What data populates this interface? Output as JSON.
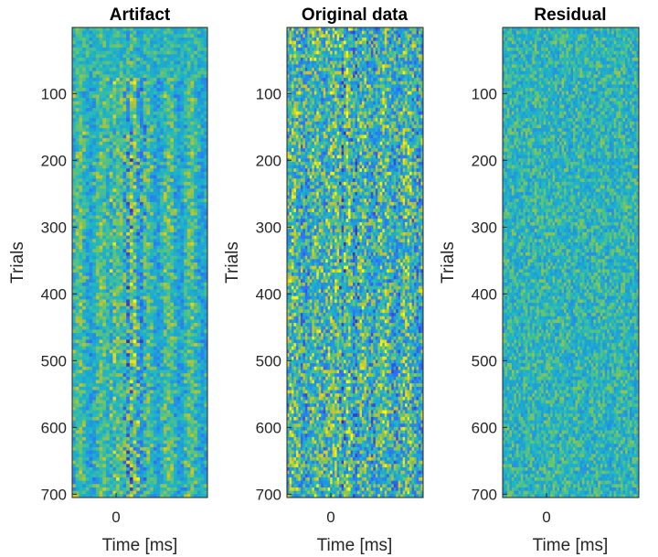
{
  "chart_data": [
    {
      "type": "heatmap",
      "title": "Artifact",
      "xlabel": "Time [ms]",
      "ylabel": "Trials",
      "x_ticks": [
        0
      ],
      "y_ticks": [
        100,
        200,
        300,
        400,
        500,
        600,
        700
      ],
      "ylim": [
        1,
        705
      ],
      "colormap": "parula",
      "y_direction": "reverse",
      "pattern": "strong vertical bands of alternating yellow/dark-blue stripes around 0 ms, consistent across trials; lower-contrast block near trials 1-75"
    },
    {
      "type": "heatmap",
      "title": "Original data",
      "xlabel": "Time [ms]",
      "ylabel": "Trials",
      "x_ticks": [
        0
      ],
      "y_ticks": [
        100,
        200,
        300,
        400,
        500,
        600,
        700
      ],
      "ylim": [
        1,
        705
      ],
      "colormap": "parula",
      "y_direction": "reverse",
      "pattern": "noisy speckle with visible vertical yellow stripes near 0 ms"
    },
    {
      "type": "heatmap",
      "title": "Residual",
      "xlabel": "Time [ms]",
      "ylabel": "Trials",
      "x_ticks": [
        0
      ],
      "y_ticks": [
        100,
        200,
        300,
        400,
        500,
        600,
        700
      ],
      "ylim": [
        1,
        705
      ],
      "colormap": "parula",
      "y_direction": "reverse",
      "pattern": "mostly uniform teal noise; faint vertical structure near 0 ms"
    }
  ],
  "colors": {
    "parula_dark": "#3e26a8",
    "parula_blue": "#2f6ffa",
    "parula_teal": "#1fb6c6",
    "parula_green": "#7cc76a",
    "parula_yellow": "#f9fb0e",
    "axis": "#262626"
  }
}
